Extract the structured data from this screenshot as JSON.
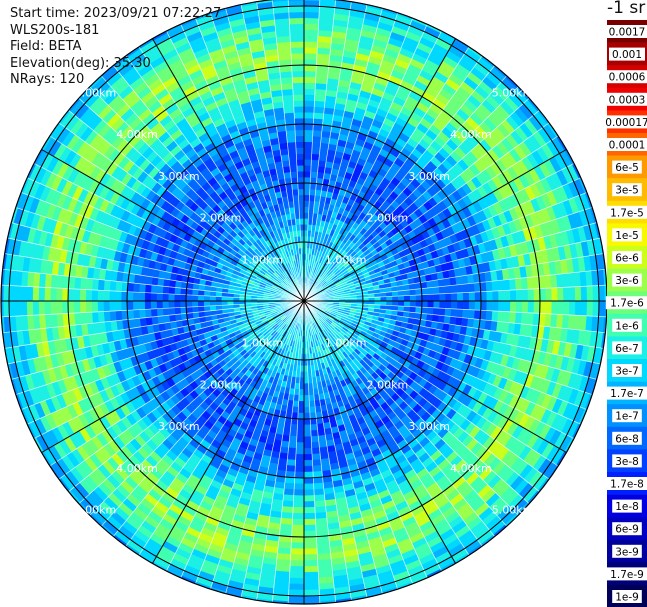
{
  "header": {
    "start_time": "Start time: 2023/09/21 07:22:27",
    "instrument": "WLS200s-181",
    "field": "Field: BETA",
    "elevation": "Elevation(deg): 35.30",
    "nrays": "NRays: 120"
  },
  "colorbar": {
    "title": "-1 sr",
    "labels": [
      "0.0017",
      "0.001",
      "0.0006",
      "0.0003",
      "0.00017",
      "0.0001",
      "6e-5",
      "3e-5",
      "1.7e-5",
      "1e-5",
      "6e-6",
      "3e-6",
      "1.7e-6",
      "1e-6",
      "6e-7",
      "3e-7",
      "1.7e-7",
      "1e-7",
      "6e-8",
      "3e-8",
      "1.7e-8",
      "1e-8",
      "6e-9",
      "3e-9",
      "1.7e-9",
      "1e-9"
    ],
    "colors": [
      "#7a0000",
      "#a80000",
      "#d40000",
      "#f00000",
      "#ff3000",
      "#ff6600",
      "#ff9900",
      "#ffbb00",
      "#ffdd00",
      "#f8f800",
      "#ccff1a",
      "#9cff4a",
      "#6cff7a",
      "#40ffb0",
      "#1cf0e4",
      "#00d8ff",
      "#00b4ff",
      "#0090ff",
      "#0068ff",
      "#0040ff",
      "#0020ff",
      "#0000e0",
      "#0000c0",
      "#00009c",
      "#000078",
      "#000058"
    ]
  },
  "chart_data": {
    "type": "heatmap",
    "projection": "polar PPI scan",
    "field": "BETA",
    "elevation_deg": 35.3,
    "n_rays": 120,
    "range_rings_km": [
      1.0,
      2.0,
      3.0,
      4.0,
      5.0
    ],
    "range_ring_labels": [
      "1.00km",
      "2.00km",
      "3.00km",
      "4.00km",
      "5.00km"
    ],
    "radial_lines_deg": [
      0,
      30,
      60,
      90,
      120,
      150,
      180,
      210,
      240,
      270,
      300,
      330
    ],
    "max_range_km": 5.6,
    "color_scale": "log",
    "value_range": [
      1e-09,
      0.0017
    ],
    "radial_profile": [
      {
        "range_km": 0.2,
        "value": 3e-07
      },
      {
        "range_km": 1.0,
        "value": 3e-07
      },
      {
        "range_km": 1.5,
        "value": 1e-07
      },
      {
        "range_km": 2.0,
        "value": 5e-08
      },
      {
        "range_km": 2.5,
        "value": 4e-08
      },
      {
        "range_km": 3.0,
        "value": 1e-07
      },
      {
        "range_km": 3.5,
        "value": 6e-07
      },
      {
        "range_km": 4.0,
        "value": 2e-06
      },
      {
        "range_km": 4.4,
        "value": 2e-06
      },
      {
        "range_km": 4.8,
        "value": 5e-07
      },
      {
        "range_km": 5.2,
        "value": 1.5e-07
      },
      {
        "range_km": 5.6,
        "value": 6e-08
      }
    ]
  }
}
